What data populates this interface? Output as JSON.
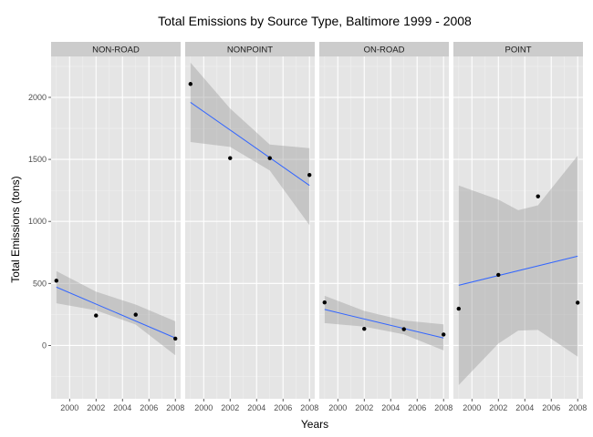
{
  "chart_data": {
    "type": "scatter",
    "title": "Total Emissions by Source Type, Baltimore 1999 - 2008",
    "xlabel": "Years",
    "ylabel": "Total Emissions (tons)",
    "x_ticks": [
      2000,
      2002,
      2004,
      2006,
      2008
    ],
    "y_ticks": [
      0,
      500,
      1000,
      1500,
      2000
    ],
    "xlim": [
      1998.6,
      2008.4
    ],
    "ylim": [
      -430,
      2330
    ],
    "grid": true,
    "legend": "none",
    "colors": {
      "panel": "#e5e5e5",
      "grid_major": "#ffffff",
      "grid_minor": "#f0f0f0",
      "strip": "#cccccc",
      "point": "#000000",
      "fit_line": "#3366ff",
      "confidence_band": "#999999"
    },
    "panels": [
      {
        "label": "NON-ROAD",
        "points": [
          [
            1999,
            522
          ],
          [
            2002,
            241
          ],
          [
            2005,
            248
          ],
          [
            2008,
            55
          ]
        ],
        "fit": {
          "start": [
            1999,
            470
          ],
          "end": [
            2008,
            60
          ]
        },
        "band_upper": [
          [
            1999,
            600
          ],
          [
            2002,
            433
          ],
          [
            2005,
            330
          ],
          [
            2008,
            195
          ]
        ],
        "band_lower": [
          [
            1999,
            340
          ],
          [
            2002,
            283
          ],
          [
            2005,
            168
          ],
          [
            2008,
            -80
          ]
        ]
      },
      {
        "label": "NONPOINT",
        "points": [
          [
            1999,
            2108
          ],
          [
            2002,
            1510
          ],
          [
            2005,
            1510
          ],
          [
            2008,
            1374
          ]
        ],
        "fit": {
          "start": [
            1999,
            1960
          ],
          "end": [
            2008,
            1290
          ]
        },
        "band_upper": [
          [
            1999,
            2280
          ],
          [
            2002,
            1910
          ],
          [
            2005,
            1620
          ],
          [
            2008,
            1590
          ]
        ],
        "band_lower": [
          [
            1999,
            1640
          ],
          [
            2002,
            1600
          ],
          [
            2005,
            1410
          ],
          [
            2008,
            970
          ]
        ]
      },
      {
        "label": "ON-ROAD",
        "points": [
          [
            1999,
            347
          ],
          [
            2002,
            134
          ],
          [
            2005,
            131
          ],
          [
            2008,
            88
          ]
        ],
        "fit": {
          "start": [
            1999,
            290
          ],
          "end": [
            2008,
            60
          ]
        },
        "band_upper": [
          [
            1999,
            400
          ],
          [
            2002,
            278
          ],
          [
            2005,
            201
          ],
          [
            2008,
            170
          ]
        ],
        "band_lower": [
          [
            1999,
            180
          ],
          [
            2002,
            152
          ],
          [
            2005,
            90
          ],
          [
            2008,
            -40
          ]
        ]
      },
      {
        "label": "POINT",
        "points": [
          [
            1999,
            296
          ],
          [
            2002,
            569
          ],
          [
            2005,
            1202
          ],
          [
            2008,
            345
          ]
        ],
        "fit": {
          "start": [
            1999,
            485
          ],
          "end": [
            2008,
            720
          ]
        },
        "band_upper": [
          [
            1999,
            1290
          ],
          [
            2002,
            1175
          ],
          [
            2003.5,
            1090
          ],
          [
            2005,
            1130
          ],
          [
            2008,
            1530
          ]
        ],
        "band_lower": [
          [
            1999,
            -320
          ],
          [
            2002,
            15
          ],
          [
            2003.5,
            120
          ],
          [
            2005,
            125
          ],
          [
            2008,
            -90
          ]
        ]
      }
    ]
  }
}
